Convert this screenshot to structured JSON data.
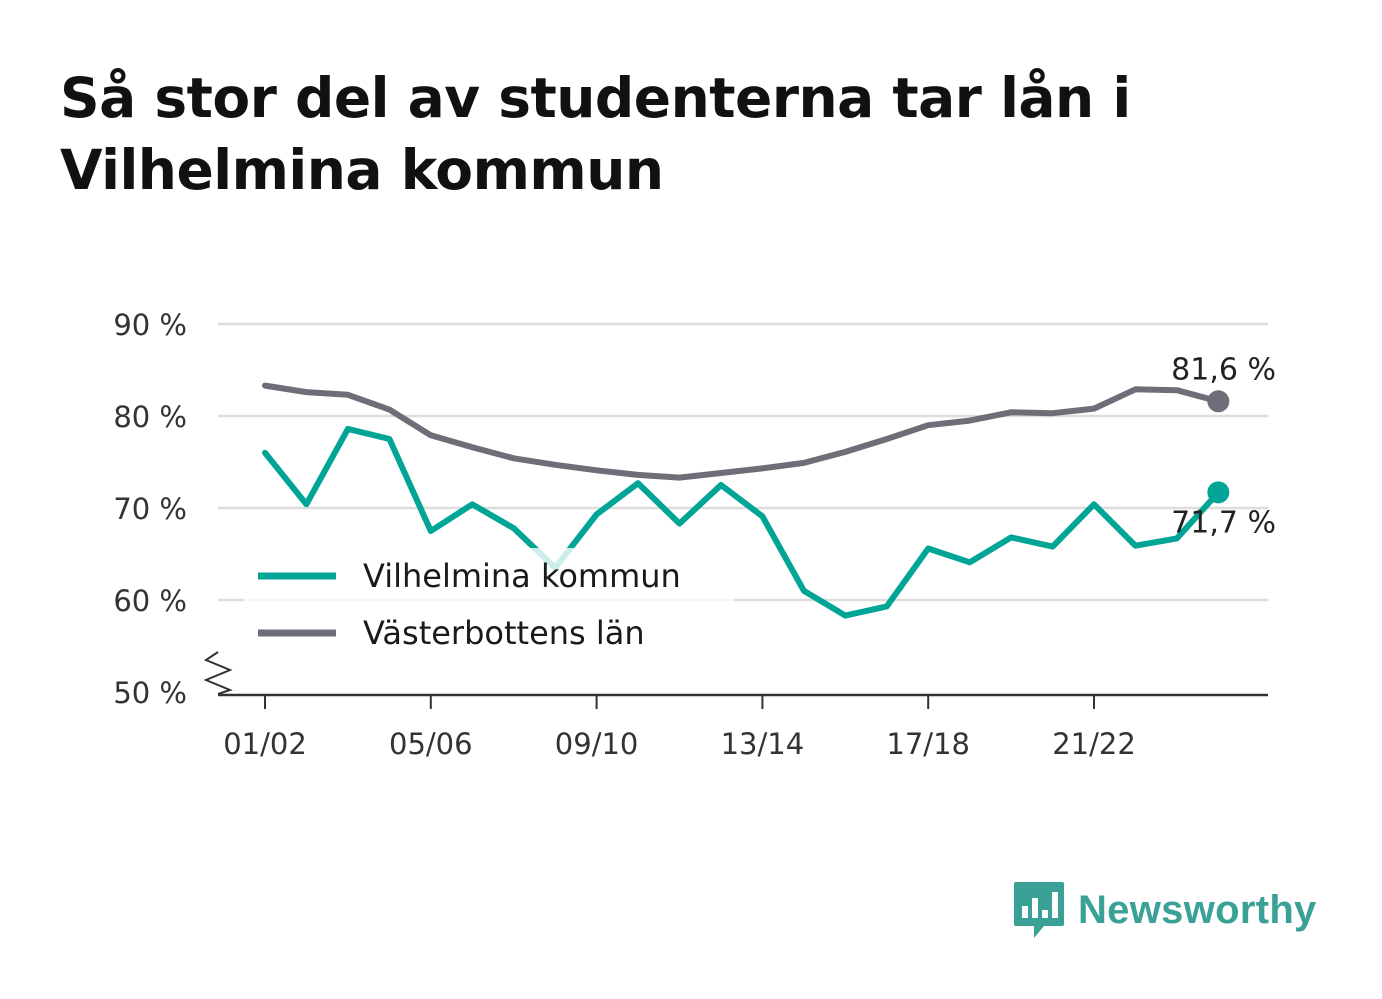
{
  "title": "Så stor del av studenterna tar lån i Vilhelmina kommun",
  "brand": {
    "name": "Newsworthy",
    "color": "#3aa196",
    "icon": "bar-chart-speech-bubble-icon"
  },
  "colors": {
    "vilhelmina": "#00a596",
    "vasterbotten": "#6e6e78",
    "grid": "#dddddd",
    "axis": "#333333"
  },
  "chart_data": {
    "type": "line",
    "title": "Så stor del av studenterna tar lån i Vilhelmina kommun",
    "xlabel": "",
    "ylabel": "",
    "ylim": [
      50,
      90
    ],
    "y_axis_break": true,
    "y_ticks": [
      50,
      60,
      70,
      80,
      90
    ],
    "y_tick_labels": [
      "50 %",
      "60 %",
      "70 %",
      "80 %",
      "90 %"
    ],
    "x_tick_labels": [
      {
        "index": 0,
        "label": "01/02"
      },
      {
        "index": 4,
        "label": "05/06"
      },
      {
        "index": 8,
        "label": "09/10"
      },
      {
        "index": 12,
        "label": "13/14"
      },
      {
        "index": 16,
        "label": "17/18"
      },
      {
        "index": 20,
        "label": "21/22"
      }
    ],
    "grid": true,
    "legend_position": "center-left",
    "categories": [
      "01/02",
      "02/03",
      "03/04",
      "04/05",
      "05/06",
      "06/07",
      "07/08",
      "08/09",
      "09/10",
      "10/11",
      "11/12",
      "12/13",
      "13/14",
      "14/15",
      "15/16",
      "16/17",
      "17/18",
      "18/19",
      "19/20",
      "20/21",
      "21/22",
      "22/23",
      "23/24",
      "24/25"
    ],
    "series": [
      {
        "name": "Vilhelmina kommun",
        "color": "#00a596",
        "values": [
          76.0,
          70.4,
          78.6,
          77.5,
          67.5,
          70.4,
          67.8,
          63.5,
          69.3,
          72.7,
          68.3,
          72.5,
          69.1,
          61.0,
          58.3,
          59.3,
          65.6,
          64.1,
          66.8,
          65.8,
          70.4,
          65.9,
          66.7,
          71.7
        ],
        "end_label": "71,7 %"
      },
      {
        "name": "Västerbottens län",
        "color": "#6e6e78",
        "values": [
          83.3,
          82.6,
          82.3,
          80.7,
          77.9,
          76.6,
          75.4,
          74.7,
          74.1,
          73.6,
          73.3,
          73.8,
          74.3,
          74.9,
          76.1,
          77.5,
          79.0,
          79.5,
          80.4,
          80.3,
          80.8,
          82.9,
          82.8,
          81.6
        ],
        "end_label": "81,6 %"
      }
    ]
  }
}
